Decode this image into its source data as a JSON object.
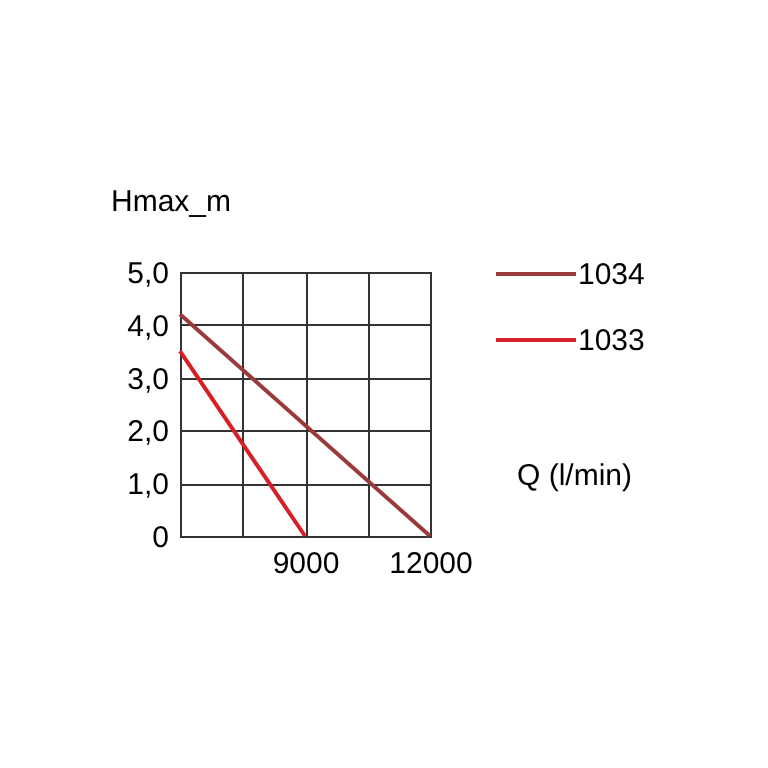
{
  "chart_data": {
    "type": "line",
    "xlabel": "Q (l/min)",
    "ylabel": "Hmax_m",
    "series": [
      {
        "name": "1034",
        "color": "#9a3a3a",
        "x": [
          6000,
          12000
        ],
        "values": [
          4.2,
          0
        ]
      },
      {
        "name": "1033",
        "color": "#d62028",
        "x": [
          6000,
          9000
        ],
        "values": [
          3.5,
          0
        ]
      }
    ],
    "xlim": [
      6000,
      12000
    ],
    "xticks": [
      {
        "value": 6000,
        "label": null
      },
      {
        "value": 7500,
        "label": null
      },
      9000,
      {
        "value": 10500,
        "label": null
      },
      12000
    ],
    "ylim": [
      0,
      5
    ],
    "yticks": [
      0,
      {
        "value": 1,
        "label": "1,0"
      },
      {
        "value": 2,
        "label": "2,0"
      },
      {
        "value": 3,
        "label": "3,0"
      },
      {
        "value": 4,
        "label": "4,0"
      },
      {
        "value": 5,
        "label": "5,0"
      }
    ],
    "grid": true,
    "legend": "top right",
    "line_style": "solid",
    "marker": "none"
  }
}
